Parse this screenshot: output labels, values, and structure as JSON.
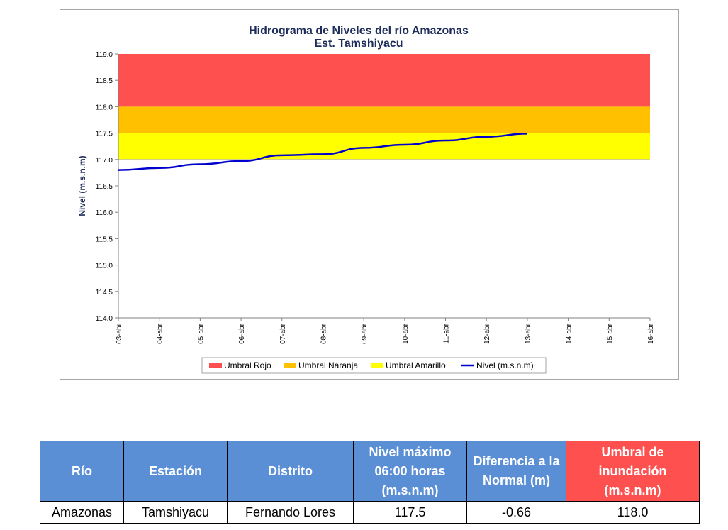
{
  "chart_data": {
    "type": "line",
    "title": "Hidrograma de Niveles del río Amazonas",
    "subtitle": "Est. Tamshiyacu",
    "ylabel": "Nivel (m.s.n.m)",
    "xlabel": "",
    "ylim": [
      114.0,
      119.0
    ],
    "y_ticks": [
      "114.0",
      "114.5",
      "115.0",
      "115.5",
      "116.0",
      "116.5",
      "117.0",
      "117.5",
      "118.0",
      "118.5",
      "119.0"
    ],
    "categories": [
      "03-abr",
      "04-abr",
      "05-abr",
      "06-abr",
      "07-abr",
      "08-abr",
      "09-abr",
      "10-abr",
      "11-abr",
      "12-abr",
      "13-abr",
      "14-abr",
      "15-abr",
      "16-abr"
    ],
    "bands": [
      {
        "name": "Umbral Rojo",
        "from": 118.0,
        "to": 119.0,
        "color": "#ff5050"
      },
      {
        "name": "Umbral Naranja",
        "from": 117.5,
        "to": 118.0,
        "color": "#ffc000"
      },
      {
        "name": "Umbral Amarillo",
        "from": 117.0,
        "to": 117.5,
        "color": "#ffff00"
      }
    ],
    "series": [
      {
        "name": "Nivel (m.s.n.m)",
        "color": "#0000cc",
        "values": [
          116.8,
          116.84,
          116.91,
          116.97,
          117.08,
          117.1,
          117.22,
          117.28,
          117.36,
          117.43,
          117.49,
          null,
          null,
          null
        ]
      }
    ],
    "grid": false,
    "legend_position": "bottom"
  },
  "table": {
    "headers": [
      "Río",
      "Estación",
      "Distrito",
      "Nivel máximo 06:00 horas (m.s.n.m)",
      "Diferencia a la Normal (m)",
      "Umbral de inundación (m.s.n.m)"
    ],
    "row": [
      "Amazonas",
      "Tamshiyacu",
      "Fernando Lores",
      "117.5",
      "-0.66",
      "118.0"
    ]
  }
}
